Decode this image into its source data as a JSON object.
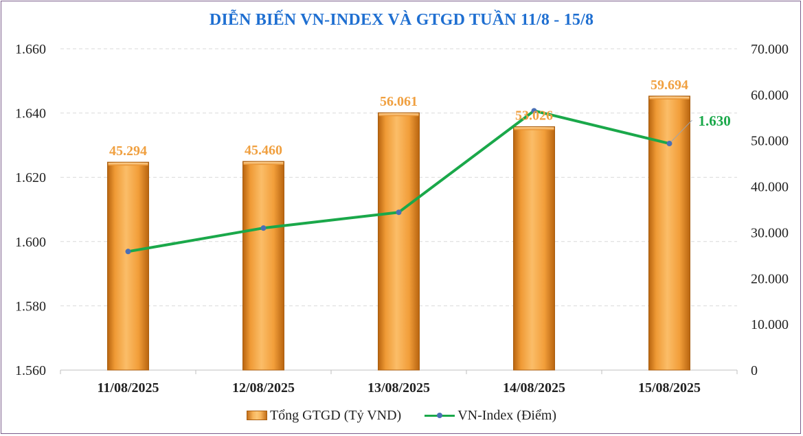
{
  "title": "DIỄN BIẾN VN-INDEX VÀ GTGD TUẦN 11/8 - 15/8",
  "chart_data": {
    "type": "bar+line",
    "title": "DIỄN BIẾN VN-INDEX VÀ GTGD TUẦN 11/8 - 15/8",
    "categories": [
      "11/08/2025",
      "12/08/2025",
      "13/08/2025",
      "14/08/2025",
      "15/08/2025"
    ],
    "series": [
      {
        "name": "Tổng GTGD (Tỷ VND)",
        "type": "bar",
        "axis": "right",
        "values": [
          45294,
          45460,
          56061,
          53026,
          59694
        ],
        "labels": [
          "45.294",
          "45.460",
          "56.061",
          "53.026",
          "59.694"
        ]
      },
      {
        "name": "VN-Index (Điểm)",
        "type": "line",
        "axis": "left",
        "values": [
          1596.9,
          1604.2,
          1609.1,
          1640.7,
          1630.5
        ],
        "end_label": "1.630"
      }
    ],
    "y_left": {
      "min": 1560,
      "max": 1660,
      "ticks": [
        1560,
        1580,
        1600,
        1620,
        1640,
        1660
      ],
      "tick_labels": [
        "1.560",
        "1.580",
        "1.600",
        "1.620",
        "1.640",
        "1.660"
      ]
    },
    "y_right": {
      "min": 0,
      "max": 70000,
      "ticks": [
        0,
        10000,
        20000,
        30000,
        40000,
        50000,
        60000,
        70000
      ],
      "tick_labels": [
        "0",
        "10.000",
        "20.000",
        "30.000",
        "40.000",
        "50.000",
        "60.000",
        "70.000"
      ]
    },
    "grid": true,
    "legend_position": "bottom",
    "colors": {
      "bar": "#f4a540",
      "bar_label": "#f0a040",
      "line": "#1aa84a",
      "marker": "#4a6fb5",
      "title": "#1f6fd1",
      "line_label": "#1aa84a"
    }
  }
}
